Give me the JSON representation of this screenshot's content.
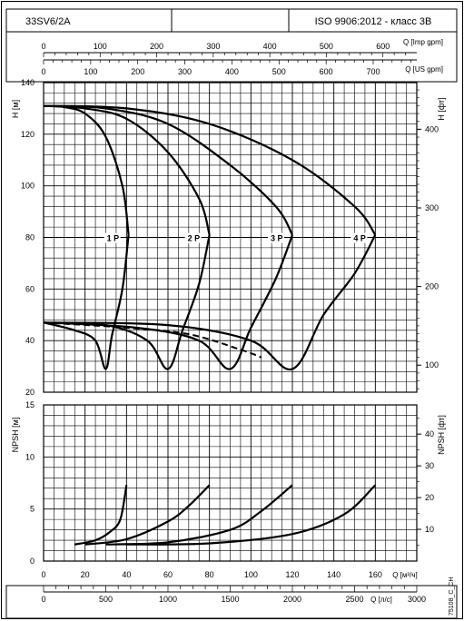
{
  "header": {
    "model": "33SV6/2A",
    "standard": "ISO 9906:2012 - класс 3В"
  },
  "chart_data": {
    "type": "line",
    "axes": {
      "q_m3h": {
        "label": "Q [м³/ч]",
        "range": [
          0,
          180
        ],
        "ticks": [
          "0",
          "20",
          "40",
          "60",
          "80",
          "100",
          "120",
          "140",
          "160"
        ]
      },
      "q_imp_gpm": {
        "label": "Q [Imp gpm]",
        "range": [
          0,
          660
        ],
        "ticks": [
          "0",
          "100",
          "200",
          "300",
          "400",
          "500",
          "600"
        ]
      },
      "q_us_gpm": {
        "label": "Q [US gpm]",
        "range": [
          0,
          792
        ],
        "ticks": [
          "0",
          "100",
          "200",
          "300",
          "400",
          "500",
          "600",
          "700"
        ]
      },
      "q_ls": {
        "label": "Q [л/с]",
        "range": [
          0,
          3000
        ],
        "ticks": [
          "0",
          "500",
          "1000",
          "1500",
          "2000",
          "2500",
          "3000"
        ]
      },
      "h_m": {
        "label": "H [м]",
        "range": [
          20,
          140
        ],
        "ticks": [
          "20",
          "40",
          "60",
          "80",
          "100",
          "120",
          "140"
        ]
      },
      "h_ft": {
        "label": "H [фт]",
        "ticks": [
          "100",
          "200",
          "300",
          "400"
        ]
      },
      "npsh_m": {
        "label": "NPSH [м]",
        "range": [
          0,
          15
        ],
        "ticks": [
          "0",
          "5",
          "10",
          "15"
        ]
      },
      "npsh_ft": {
        "label": "NPSH [фт]",
        "ticks": [
          "10",
          "20",
          "30",
          "40"
        ]
      }
    },
    "head_curves": [
      {
        "name": "1 P",
        "points": [
          [
            0,
            131
          ],
          [
            10,
            130.5
          ],
          [
            20,
            128
          ],
          [
            30,
            119
          ],
          [
            38,
            100
          ],
          [
            41,
            81
          ],
          [
            38,
            60
          ],
          [
            33,
            42
          ],
          [
            30,
            29
          ],
          [
            25,
            40
          ],
          [
            15,
            44
          ],
          [
            0,
            47
          ]
        ]
      },
      {
        "name": "2 P",
        "points": [
          [
            0,
            131
          ],
          [
            20,
            130
          ],
          [
            40,
            126
          ],
          [
            60,
            113
          ],
          [
            75,
            95
          ],
          [
            80,
            81
          ],
          [
            75,
            62
          ],
          [
            67,
            44
          ],
          [
            60,
            29
          ],
          [
            50,
            40
          ],
          [
            30,
            46
          ],
          [
            0,
            47
          ]
        ]
      },
      {
        "name": "3 P",
        "points": [
          [
            0,
            131
          ],
          [
            30,
            130
          ],
          [
            60,
            124
          ],
          [
            90,
            108
          ],
          [
            112,
            92
          ],
          [
            120,
            81
          ],
          [
            112,
            64
          ],
          [
            100,
            45
          ],
          [
            90,
            29
          ],
          [
            75,
            40
          ],
          [
            45,
            45
          ],
          [
            0,
            47
          ]
        ]
      },
      {
        "name": "4 P",
        "points": [
          [
            0,
            131
          ],
          [
            40,
            130
          ],
          [
            80,
            124
          ],
          [
            120,
            110
          ],
          [
            150,
            92
          ],
          [
            160,
            81
          ],
          [
            150,
            66
          ],
          [
            135,
            50
          ],
          [
            120,
            29
          ],
          [
            100,
            40
          ],
          [
            60,
            46
          ],
          [
            0,
            47
          ]
        ]
      }
    ],
    "efficiency_curve": [
      [
        0,
        47
      ],
      [
        40,
        45
      ],
      [
        70,
        42.5
      ],
      [
        95,
        36.5
      ],
      [
        105,
        33.5
      ]
    ],
    "npsh_curves": [
      {
        "name": "1 P",
        "points": [
          [
            15,
            1.6
          ],
          [
            25,
            2
          ],
          [
            32,
            2.8
          ],
          [
            37,
            4
          ],
          [
            40,
            7.3
          ]
        ]
      },
      {
        "name": "2 P",
        "points": [
          [
            20,
            1.6
          ],
          [
            40,
            2.1
          ],
          [
            60,
            3.8
          ],
          [
            70,
            5.3
          ],
          [
            80,
            7.3
          ]
        ]
      },
      {
        "name": "3 P",
        "points": [
          [
            30,
            1.6
          ],
          [
            60,
            1.8
          ],
          [
            90,
            3
          ],
          [
            105,
            4.8
          ],
          [
            120,
            7.3
          ]
        ]
      },
      {
        "name": "4 P",
        "points": [
          [
            40,
            1.6
          ],
          [
            80,
            1.7
          ],
          [
            120,
            2.6
          ],
          [
            145,
            4.5
          ],
          [
            160,
            7.3
          ]
        ]
      }
    ],
    "watermark": "75108_C_CH"
  }
}
